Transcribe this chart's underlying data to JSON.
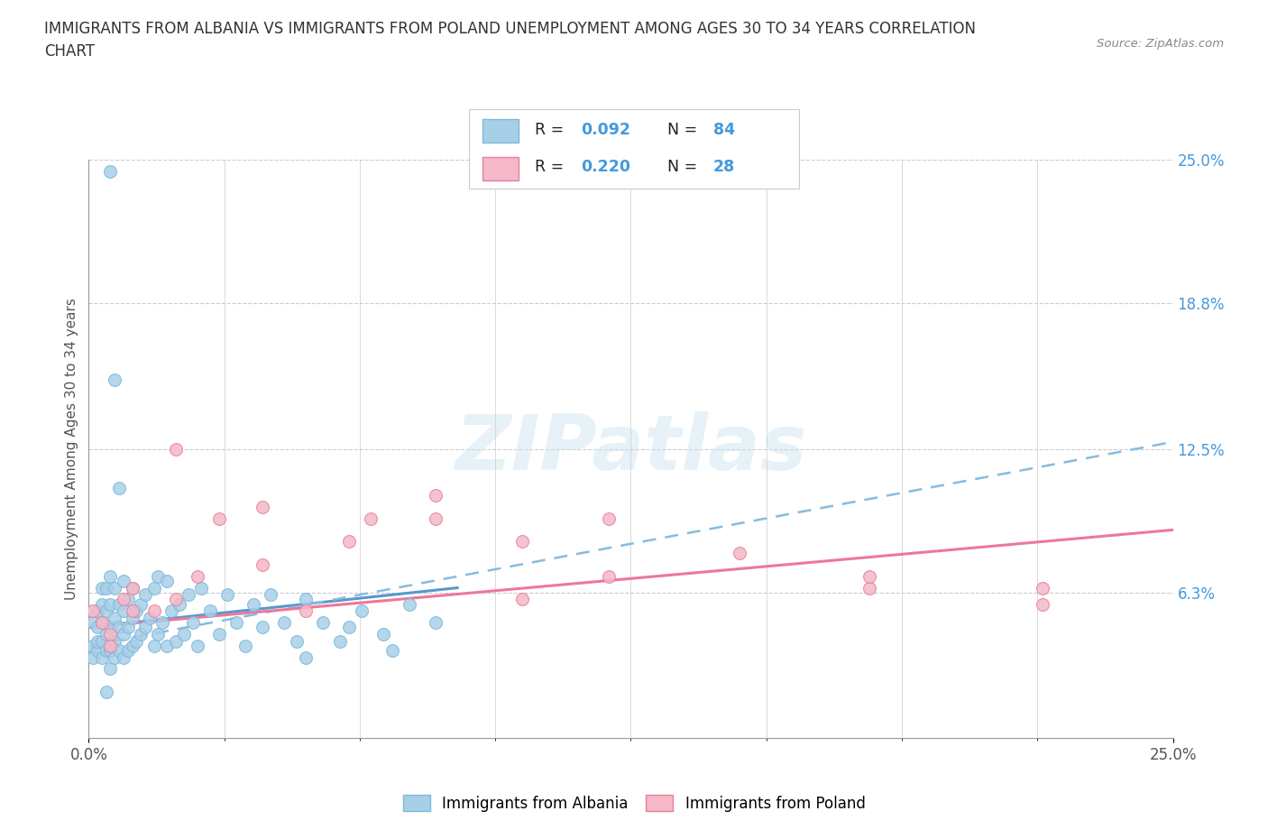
{
  "title": "IMMIGRANTS FROM ALBANIA VS IMMIGRANTS FROM POLAND UNEMPLOYMENT AMONG AGES 30 TO 34 YEARS CORRELATION\nCHART",
  "source_text": "Source: ZipAtlas.com",
  "ylabel": "Unemployment Among Ages 30 to 34 years",
  "xlim": [
    0.0,
    0.25
  ],
  "ylim": [
    0.0,
    0.25
  ],
  "y_tick_labels_right": [
    "6.3%",
    "12.5%",
    "18.8%",
    "25.0%"
  ],
  "y_tick_values_right": [
    0.063,
    0.125,
    0.188,
    0.25
  ],
  "albania_color": "#a8cfe8",
  "albania_edge_color": "#7db8da",
  "poland_color": "#f4b8c8",
  "poland_edge_color": "#e8809a",
  "albania_R": 0.092,
  "albania_N": 84,
  "poland_R": 0.22,
  "poland_N": 28,
  "legend_R_color": "#4499dd",
  "watermark_text": "ZIPatlas",
  "background_color": "#ffffff",
  "grid_color": "#cccccc",
  "trendline_albania_color": "#5599cc",
  "trendline_albania_dash_color": "#88bbdd",
  "trendline_poland_color": "#ee7799",
  "albania_x": [
    0.001,
    0.001,
    0.001,
    0.002,
    0.002,
    0.002,
    0.002,
    0.003,
    0.003,
    0.003,
    0.003,
    0.003,
    0.004,
    0.004,
    0.004,
    0.004,
    0.005,
    0.005,
    0.005,
    0.005,
    0.005,
    0.006,
    0.006,
    0.006,
    0.006,
    0.007,
    0.007,
    0.007,
    0.008,
    0.008,
    0.008,
    0.008,
    0.009,
    0.009,
    0.009,
    0.01,
    0.01,
    0.01,
    0.011,
    0.011,
    0.012,
    0.012,
    0.013,
    0.013,
    0.014,
    0.015,
    0.015,
    0.016,
    0.016,
    0.017,
    0.018,
    0.018,
    0.019,
    0.02,
    0.021,
    0.022,
    0.023,
    0.024,
    0.025,
    0.026,
    0.028,
    0.03,
    0.032,
    0.034,
    0.036,
    0.038,
    0.04,
    0.042,
    0.045,
    0.048,
    0.05,
    0.054,
    0.058,
    0.063,
    0.068,
    0.074,
    0.05,
    0.06,
    0.07,
    0.08,
    0.005,
    0.006,
    0.007,
    0.004
  ],
  "albania_y": [
    0.035,
    0.04,
    0.05,
    0.038,
    0.042,
    0.048,
    0.055,
    0.035,
    0.042,
    0.05,
    0.058,
    0.065,
    0.038,
    0.045,
    0.055,
    0.065,
    0.03,
    0.038,
    0.048,
    0.058,
    0.07,
    0.035,
    0.042,
    0.052,
    0.065,
    0.038,
    0.048,
    0.058,
    0.035,
    0.045,
    0.055,
    0.068,
    0.038,
    0.048,
    0.06,
    0.04,
    0.052,
    0.065,
    0.042,
    0.055,
    0.045,
    0.058,
    0.048,
    0.062,
    0.052,
    0.04,
    0.065,
    0.045,
    0.07,
    0.05,
    0.04,
    0.068,
    0.055,
    0.042,
    0.058,
    0.045,
    0.062,
    0.05,
    0.04,
    0.065,
    0.055,
    0.045,
    0.062,
    0.05,
    0.04,
    0.058,
    0.048,
    0.062,
    0.05,
    0.042,
    0.06,
    0.05,
    0.042,
    0.055,
    0.045,
    0.058,
    0.035,
    0.048,
    0.038,
    0.05,
    0.245,
    0.155,
    0.108,
    0.02
  ],
  "poland_x": [
    0.001,
    0.003,
    0.005,
    0.008,
    0.01,
    0.015,
    0.02,
    0.025,
    0.03,
    0.04,
    0.05,
    0.065,
    0.08,
    0.1,
    0.02,
    0.04,
    0.06,
    0.08,
    0.1,
    0.12,
    0.15,
    0.18,
    0.22,
    0.005,
    0.01,
    0.18,
    0.12,
    0.22
  ],
  "poland_y": [
    0.055,
    0.05,
    0.045,
    0.06,
    0.065,
    0.055,
    0.125,
    0.07,
    0.095,
    0.075,
    0.055,
    0.095,
    0.105,
    0.06,
    0.06,
    0.1,
    0.085,
    0.095,
    0.085,
    0.07,
    0.08,
    0.065,
    0.065,
    0.04,
    0.055,
    0.07,
    0.095,
    0.058
  ],
  "albania_trend_x0": 0.0,
  "albania_trend_x1": 0.085,
  "albania_trend_y0": 0.048,
  "albania_trend_y1": 0.065,
  "albania_dash_trend_x0": 0.0,
  "albania_dash_trend_x1": 0.25,
  "albania_dash_trend_y0": 0.04,
  "albania_dash_trend_y1": 0.128,
  "poland_trend_x0": 0.0,
  "poland_trend_x1": 0.25,
  "poland_trend_y0": 0.048,
  "poland_trend_y1": 0.09
}
